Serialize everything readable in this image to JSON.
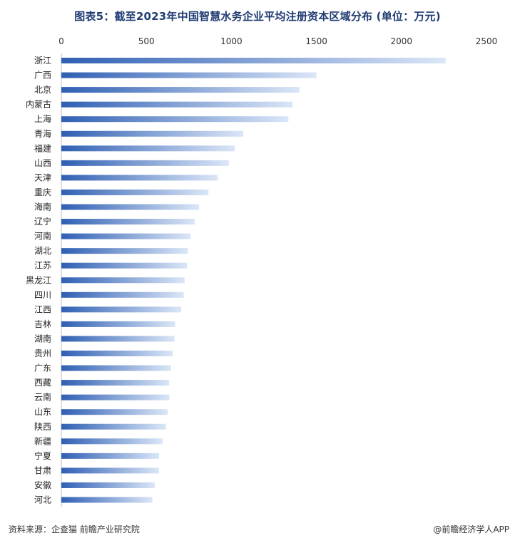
{
  "title": "图表5：截至2023年中国智慧水务企业平均注册资本区域分布 (单位：万元)",
  "source": "资料来源：企查猫 前瞻产业研究院",
  "brand": "@前瞻经济学人APP",
  "colors": {
    "bar_dark": "#2f5fb3",
    "bar_light": "#dbe6f7",
    "title": "#1f3b72"
  },
  "chart_data": {
    "type": "bar",
    "orientation": "horizontal",
    "categories": [
      "浙江",
      "广西",
      "北京",
      "内蒙古",
      "上海",
      "青海",
      "福建",
      "山西",
      "天津",
      "重庆",
      "海南",
      "辽宁",
      "河南",
      "湖北",
      "江苏",
      "黑龙江",
      "四川",
      "江西",
      "吉林",
      "湖南",
      "贵州",
      "广东",
      "西藏",
      "云南",
      "山东",
      "陕西",
      "新疆",
      "宁夏",
      "甘肃",
      "安徽",
      "河北"
    ],
    "values": [
      2260,
      1500,
      1400,
      1360,
      1335,
      1070,
      1020,
      985,
      920,
      865,
      810,
      785,
      760,
      745,
      740,
      725,
      720,
      705,
      670,
      665,
      655,
      645,
      635,
      635,
      625,
      615,
      595,
      575,
      575,
      550,
      535
    ],
    "xlim": [
      0,
      2500
    ],
    "xticks": [
      "0",
      "500",
      "1000",
      "1500",
      "2000",
      "2500"
    ],
    "xtick_values": [
      0,
      500,
      1000,
      1500,
      2000,
      2500
    ],
    "grid": false,
    "legend": "none"
  }
}
